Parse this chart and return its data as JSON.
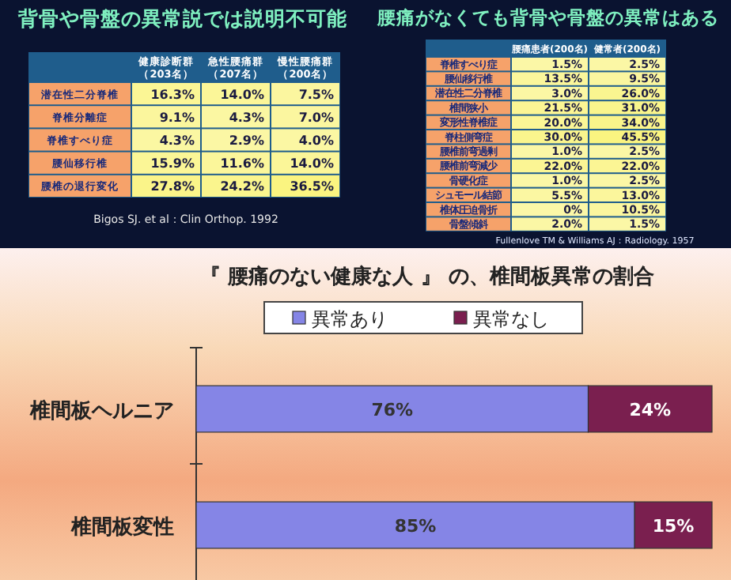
{
  "chart_data": [
    {
      "type": "heatmap",
      "title": "背骨や骨盤の異常説では説明不可能",
      "categories": [
        "健康診断群（203名）",
        "急性腰痛群（207名）",
        "慢性腰痛群（200名）"
      ],
      "y_categories": [
        "潜在性二分脊椎",
        "脊椎分離症",
        "脊椎すべり症",
        "腰仙移行椎",
        "腰椎の退行変化"
      ],
      "cells": [
        [
          16.3,
          14.0,
          7.5
        ],
        [
          9.1,
          4.3,
          7.0
        ],
        [
          4.3,
          2.9,
          4.0
        ],
        [
          15.9,
          11.6,
          14.0
        ],
        [
          27.8,
          24.2,
          36.5
        ]
      ],
      "cell_labels": [
        [
          "16.3%",
          "14.0%",
          "7.5%"
        ],
        [
          "9.1%",
          "4.3%",
          "7.0%"
        ],
        [
          "4.3%",
          "2.9%",
          "4.0%"
        ],
        [
          "15.9%",
          "11.6%",
          "14.0%"
        ],
        [
          "27.8%",
          "24.2%",
          "36.5%"
        ]
      ],
      "annotations": [
        "Bigos SJ. et al：Clin Orthop. 1992"
      ]
    },
    {
      "type": "heatmap",
      "title": "腰痛がなくても背骨や骨盤の異常はある",
      "categories": [
        "腰痛患者(200名)",
        "健常者(200名)"
      ],
      "y_categories": [
        "脊椎すべり症",
        "腰仙移行椎",
        "潜在性二分脊椎",
        "椎間狭小",
        "変形性脊椎症",
        "脊柱側弯症",
        "腰椎前弯過剰",
        "腰椎前弯減少",
        "骨硬化症",
        "シュモール結節",
        "椎体圧迫骨折",
        "骨盤傾斜"
      ],
      "cells": [
        [
          1.5,
          2.5
        ],
        [
          13.5,
          9.5
        ],
        [
          3.0,
          26.0
        ],
        [
          21.5,
          31.0
        ],
        [
          20.0,
          34.0
        ],
        [
          30.0,
          45.5
        ],
        [
          1.0,
          2.5
        ],
        [
          22.0,
          22.0
        ],
        [
          1.0,
          2.5
        ],
        [
          5.5,
          13.0
        ],
        [
          0,
          10.5
        ],
        [
          2.0,
          1.5
        ]
      ],
      "cell_labels": [
        [
          "1.5%",
          "2.5%"
        ],
        [
          "13.5%",
          "9.5%"
        ],
        [
          "3.0%",
          "26.0%"
        ],
        [
          "21.5%",
          "31.0%"
        ],
        [
          "20.0%",
          "34.0%"
        ],
        [
          "30.0%",
          "45.5%"
        ],
        [
          "1.0%",
          "2.5%"
        ],
        [
          "22.0%",
          "22.0%"
        ],
        [
          "1.0%",
          "2.5%"
        ],
        [
          "5.5%",
          "13.0%"
        ],
        [
          "0%",
          "10.5%"
        ],
        [
          "2.0%",
          "1.5%"
        ]
      ],
      "annotations": [
        "Fullenlove TM & Williams AJ：Radiology. 1957"
      ]
    },
    {
      "type": "bar",
      "orientation": "horizontal",
      "stacked": true,
      "title": "『 腰痛のない健康な人 』 の、椎間板異常の割合",
      "legend": "top",
      "categories": [
        "椎間板ヘルニア",
        "椎間板変性"
      ],
      "series": [
        {
          "name": "異常あり",
          "color": "#8585e6",
          "values": [
            76,
            85
          ],
          "value_labels": [
            "76%",
            "85%"
          ]
        },
        {
          "name": "異常なし",
          "color": "#7a1f4f",
          "values": [
            24,
            15
          ],
          "value_labels": [
            "24%",
            "15%"
          ]
        }
      ]
    }
  ]
}
